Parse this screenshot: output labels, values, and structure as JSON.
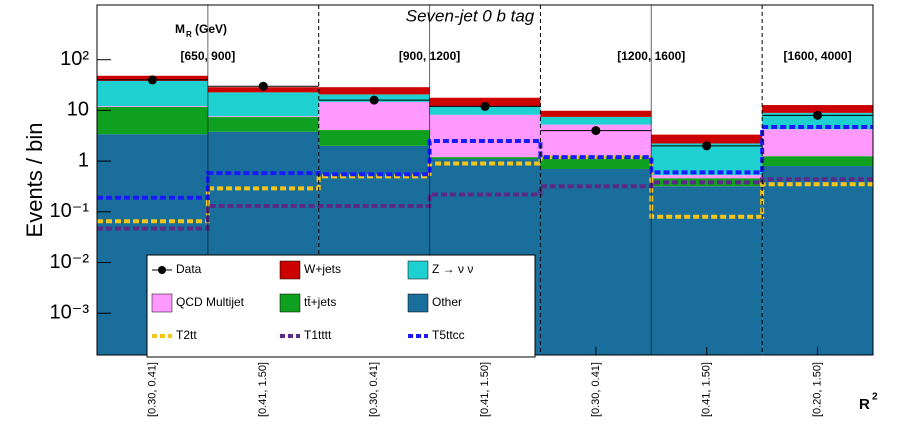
{
  "chart_data": {
    "type": "bar",
    "title": "Seven-jet 0 b tag",
    "y_label": "Events / bin",
    "x_label": "R",
    "x_label_sup": "2",
    "group_title": "M",
    "group_title_sub": "R",
    "group_title_unit": "(GeV)",
    "groups": [
      "[650, 900]",
      "[900, 1200]",
      "[1200, 1600]",
      "[1600, 4000]"
    ],
    "categories": [
      "[0.30, 0.41]",
      "[0.41, 1.50]",
      "[0.30, 0.41]",
      "[0.41, 1.50]",
      "[0.30, 0.41]",
      "[0.41, 1.50]",
      "[0.20, 1.50]"
    ],
    "log_y": true,
    "ylim": [
      0.00015,
      1200
    ],
    "yticks": [
      {
        "value": 0.001,
        "label": "10⁻³"
      },
      {
        "value": 0.01,
        "label": "10⁻²"
      },
      {
        "value": 0.1,
        "label": "10⁻¹"
      },
      1,
      10,
      {
        "value": 100,
        "label": "10²"
      }
    ],
    "series": [
      {
        "name": "Data",
        "kind": "points",
        "color": "#000000",
        "values": [
          40,
          30,
          16,
          12,
          4,
          2,
          8
        ]
      },
      {
        "name": "W+jets",
        "kind": "stack",
        "color": "#cc0000",
        "values": [
          10,
          6,
          8,
          6,
          2.4,
          1.1,
          3.8
        ]
      },
      {
        "name": "Z → ν ν",
        "kind": "stack",
        "color": "#1fd0d0",
        "values": [
          26,
          15,
          6,
          3.6,
          2.2,
          1.7,
          4.7
        ]
      },
      {
        "name": "QCD Multijet",
        "kind": "stack",
        "color": "#ff99ff",
        "values": [
          0.5,
          0.3,
          10.6,
          7,
          4,
          0.07,
          3
        ]
      },
      {
        "name": "tt̄+jets",
        "kind": "stack",
        "color": "#10a020",
        "values": [
          8.3,
          3.6,
          2.1,
          0.1,
          0.55,
          0.14,
          0.45
        ]
      },
      {
        "name": "Other",
        "kind": "stack",
        "color": "#1a6e9c",
        "values": [
          3.4,
          3.8,
          2,
          1.1,
          0.7,
          0.32,
          0.8
        ]
      },
      {
        "name": "T2tt",
        "kind": "line",
        "color": "#f5c518",
        "values": [
          0.065,
          0.29,
          0.5,
          0.9,
          1.2,
          0.08,
          0.35
        ]
      },
      {
        "name": "T1tttt",
        "kind": "line",
        "color": "#5b2a86",
        "values": [
          0.047,
          0.13,
          0.13,
          0.22,
          0.32,
          0.38,
          0.44
        ]
      },
      {
        "name": "T5ttcc",
        "kind": "line",
        "color": "#1a1aff",
        "values": [
          0.19,
          0.58,
          0.55,
          2.5,
          1.2,
          0.6,
          4.7
        ]
      }
    ]
  }
}
